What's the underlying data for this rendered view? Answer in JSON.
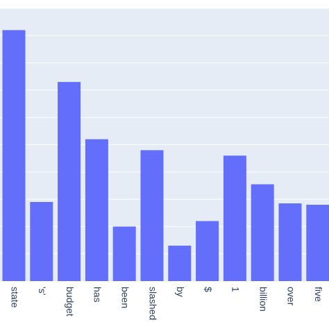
{
  "chart_data": {
    "type": "bar",
    "categories": [
      "state",
      "'s'",
      "budget",
      "has",
      "been",
      "slashed",
      "by",
      "$",
      "1",
      "billion",
      "over",
      "five"
    ],
    "values": [
      0.92,
      0.29,
      0.73,
      0.52,
      0.2,
      0.48,
      0.13,
      0.22,
      0.46,
      0.355,
      0.285,
      0.28
    ],
    "title": "",
    "xlabel": "",
    "ylabel": "",
    "ylim": [
      0,
      1.0
    ],
    "grid": true,
    "legend": "none",
    "colors": {
      "bar": "#636efa",
      "plot_background": "#e5ecf6",
      "gridline": "#ffffff",
      "tick_text": "#2a3f5f"
    }
  }
}
